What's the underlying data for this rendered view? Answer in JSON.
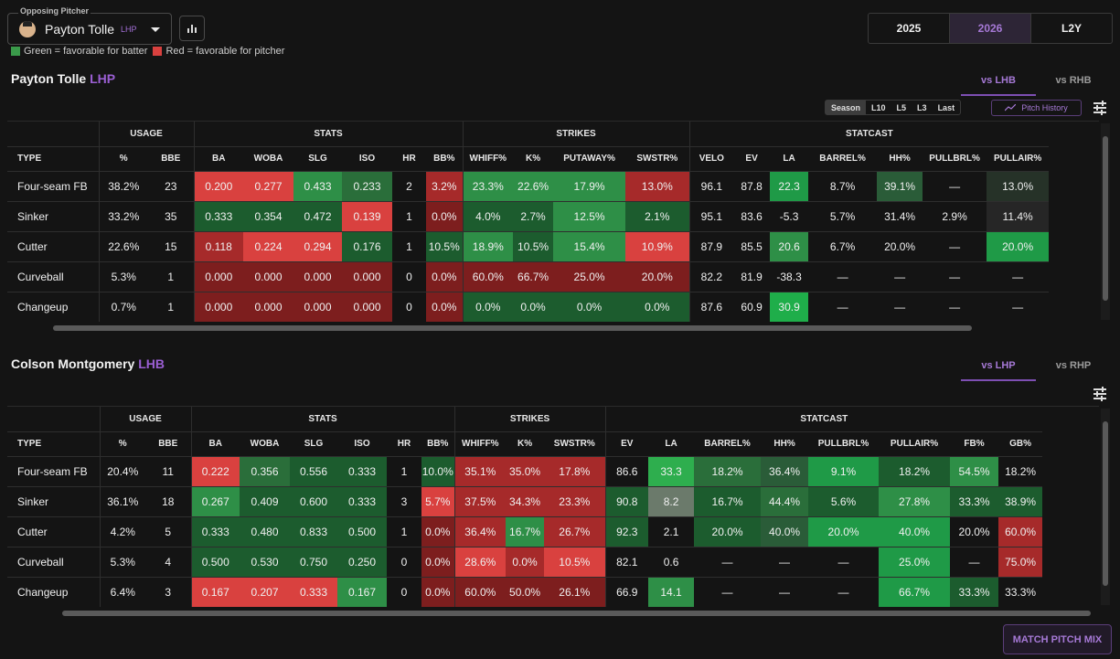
{
  "header": {
    "select_label": "Opposing Pitcher",
    "pitcher_name": "Payton Tolle",
    "pitcher_hand": "LHP",
    "legend_green": "Green = favorable for batter",
    "legend_red": "Red = favorable for pitcher",
    "years": [
      "2025",
      "2026",
      "L2Y"
    ],
    "active_year": "2026"
  },
  "colors": {
    "accent": "#a679d6",
    "green_legend": "#3a9a4a",
    "red_legend": "#d9413f"
  },
  "pitcher_section": {
    "name": "Payton Tolle",
    "hand": "LHP",
    "tab_l": "vs LHB",
    "tab_r": "vs RHB",
    "ranges": [
      "Season",
      "L10",
      "L5",
      "L3",
      "Last"
    ],
    "pitch_history": "Pitch History",
    "groups": [
      "USAGE",
      "STATS",
      "STRIKES",
      "STATCAST"
    ],
    "columns": [
      "TYPE",
      "%",
      "BBE",
      "BA",
      "WOBA",
      "SLG",
      "ISO",
      "HR",
      "BB%",
      "WHIFF%",
      "K%",
      "PUTAWAY%",
      "SWSTR%",
      "VELO",
      "EV",
      "LA",
      "BARREL%",
      "HH%",
      "PULLBRL%",
      "PULLAIR%"
    ],
    "rows": [
      [
        "Four-seam FB",
        "38.2%",
        "23",
        "0.200",
        "0.277",
        "0.433",
        "0.233",
        "2",
        "3.2%",
        "23.3%",
        "22.6%",
        "17.9%",
        "13.0%",
        "96.1",
        "87.8",
        "22.3",
        "8.7%",
        "39.1%",
        "—",
        "13.0%"
      ],
      [
        "Sinker",
        "33.2%",
        "35",
        "0.333",
        "0.354",
        "0.472",
        "0.139",
        "1",
        "0.0%",
        "4.0%",
        "2.7%",
        "12.5%",
        "2.1%",
        "95.1",
        "83.6",
        "-5.3",
        "5.7%",
        "31.4%",
        "2.9%",
        "11.4%"
      ],
      [
        "Cutter",
        "22.6%",
        "15",
        "0.118",
        "0.224",
        "0.294",
        "0.176",
        "1",
        "10.5%",
        "18.9%",
        "10.5%",
        "15.4%",
        "10.9%",
        "87.9",
        "85.5",
        "20.6",
        "6.7%",
        "20.0%",
        "—",
        "20.0%"
      ],
      [
        "Curveball",
        "5.3%",
        "1",
        "0.000",
        "0.000",
        "0.000",
        "0.000",
        "0",
        "0.0%",
        "60.0%",
        "66.7%",
        "25.0%",
        "20.0%",
        "82.2",
        "81.9",
        "-38.3",
        "—",
        "—",
        "—",
        "—"
      ],
      [
        "Changeup",
        "0.7%",
        "1",
        "0.000",
        "0.000",
        "0.000",
        "0.000",
        "0",
        "0.0%",
        "0.0%",
        "0.0%",
        "0.0%",
        "0.0%",
        "87.6",
        "60.9",
        "30.9",
        "—",
        "—",
        "—",
        "—"
      ]
    ],
    "cell_colors": [
      [
        "",
        "",
        "",
        "#d9413f",
        "#d9413f",
        "#2e8f47",
        "#2a6e3a",
        "",
        "#a62a2a",
        "#2e8f47",
        "#2e8f47",
        "#2e8f47",
        "#a62a2a",
        "",
        "",
        "#1f9a47",
        "",
        "#2a5c38",
        "",
        "#263228"
      ],
      [
        "",
        "",
        "",
        "#1c5c2e",
        "#1c5c2e",
        "#1c5c2e",
        "#d9413f",
        "",
        "#7d1e1e",
        "#1c5c2e",
        "#1c5c2e",
        "#2e8f47",
        "#1c5c2e",
        "",
        "",
        "",
        "",
        "",
        "",
        "#262626"
      ],
      [
        "",
        "",
        "",
        "#a62a2a",
        "#d9413f",
        "#d9413f",
        "#1c5c2e",
        "",
        "#1c5c2e",
        "#2e8f47",
        "#1c5c2e",
        "#2e8f47",
        "#d9413f",
        "",
        "",
        "#2e8f47",
        "",
        "",
        "",
        "#1f9a47"
      ],
      [
        "",
        "",
        "",
        "#7d1e1e",
        "#7d1e1e",
        "#7d1e1e",
        "#7d1e1e",
        "",
        "#7d1e1e",
        "#7d1e1e",
        "#7d1e1e",
        "#7d1e1e",
        "#7d1e1e",
        "",
        "",
        "",
        "",
        "",
        "",
        ""
      ],
      [
        "",
        "",
        "",
        "#7d1e1e",
        "#7d1e1e",
        "#7d1e1e",
        "#7d1e1e",
        "",
        "#7d1e1e",
        "#1c5c2e",
        "#1c5c2e",
        "#1c5c2e",
        "#1c5c2e",
        "",
        "",
        "#1fae4a",
        "",
        "",
        "",
        ""
      ]
    ]
  },
  "batter_section": {
    "name": "Colson Montgomery",
    "hand": "LHB",
    "tab_l": "vs LHP",
    "tab_r": "vs RHP",
    "groups": [
      "USAGE",
      "STATS",
      "STRIKES",
      "STATCAST"
    ],
    "columns": [
      "TYPE",
      "%",
      "BBE",
      "BA",
      "WOBA",
      "SLG",
      "ISO",
      "HR",
      "BB%",
      "WHIFF%",
      "K%",
      "SWSTR%",
      "EV",
      "LA",
      "BARREL%",
      "HH%",
      "PULLBRL%",
      "PULLAIR%",
      "FB%",
      "GB%"
    ],
    "rows": [
      [
        "Four-seam FB",
        "20.4%",
        "11",
        "0.222",
        "0.356",
        "0.556",
        "0.333",
        "1",
        "10.0%",
        "35.1%",
        "35.0%",
        "17.8%",
        "86.6",
        "33.3",
        "18.2%",
        "36.4%",
        "9.1%",
        "18.2%",
        "54.5%",
        "18.2%"
      ],
      [
        "Sinker",
        "36.1%",
        "18",
        "0.267",
        "0.409",
        "0.600",
        "0.333",
        "3",
        "5.7%",
        "37.5%",
        "34.3%",
        "23.3%",
        "90.8",
        "8.2",
        "16.7%",
        "44.4%",
        "5.6%",
        "27.8%",
        "33.3%",
        "38.9%"
      ],
      [
        "Cutter",
        "4.2%",
        "5",
        "0.333",
        "0.480",
        "0.833",
        "0.500",
        "1",
        "0.0%",
        "36.4%",
        "16.7%",
        "26.7%",
        "92.3",
        "2.1",
        "20.0%",
        "40.0%",
        "20.0%",
        "40.0%",
        "20.0%",
        "60.0%"
      ],
      [
        "Curveball",
        "5.3%",
        "4",
        "0.500",
        "0.530",
        "0.750",
        "0.250",
        "0",
        "0.0%",
        "28.6%",
        "0.0%",
        "10.5%",
        "82.1",
        "0.6",
        "—",
        "—",
        "—",
        "25.0%",
        "—",
        "75.0%"
      ],
      [
        "Changeup",
        "6.4%",
        "3",
        "0.167",
        "0.207",
        "0.333",
        "0.167",
        "0",
        "0.0%",
        "60.0%",
        "50.0%",
        "26.1%",
        "66.9",
        "14.1",
        "—",
        "—",
        "—",
        "66.7%",
        "33.3%",
        "33.3%"
      ]
    ],
    "cell_colors": [
      [
        "",
        "",
        "",
        "#d9413f",
        "#2a6e3a",
        "#1c5c2e",
        "#1c5c2e",
        "",
        "#1c5c2e",
        "#a62a2a",
        "#a62a2a",
        "#a62a2a",
        "",
        "#2eae4e",
        "#2a6e3a",
        "#2a5c38",
        "#1f9a47",
        "#1c5c2e",
        "#2e8f47",
        ""
      ],
      [
        "",
        "",
        "",
        "#2e8f47",
        "#1c5c2e",
        "#1c5c2e",
        "#1c5c2e",
        "",
        "#d9413f",
        "#a62a2a",
        "#a62a2a",
        "#a62a2a",
        "#1c5c2e",
        "#6b7a6b",
        "#1c5c2e",
        "#2a6e3a",
        "#1c5c2e",
        "#2e8f47",
        "#1c5c2e",
        "#1c5c2e"
      ],
      [
        "",
        "",
        "",
        "#1c5c2e",
        "#1c5c2e",
        "#1c5c2e",
        "#1c5c2e",
        "",
        "#7d1e1e",
        "#a62a2a",
        "#2e8f47",
        "#a62a2a",
        "#1c5c2e",
        "",
        "#1c5c2e",
        "#2a5c38",
        "#1f9a47",
        "#1f9a47",
        "",
        "#a62a2a"
      ],
      [
        "",
        "",
        "",
        "#1c5c2e",
        "#1c5c2e",
        "#1c5c2e",
        "#1c5c2e",
        "",
        "#7d1e1e",
        "#d9413f",
        "#a62a2a",
        "#d9413f",
        "",
        "",
        "",
        "",
        "",
        "#1f9a47",
        "",
        "#a62a2a"
      ],
      [
        "",
        "",
        "",
        "#d9413f",
        "#d9413f",
        "#d9413f",
        "#2e8f47",
        "",
        "#7d1e1e",
        "#7d1e1e",
        "#7d1e1e",
        "#7d1e1e",
        "",
        "#2e8f47",
        "",
        "",
        "",
        "#1f9a47",
        "#1c5c2e",
        ""
      ]
    ]
  },
  "match_button": "MATCH PITCH MIX"
}
